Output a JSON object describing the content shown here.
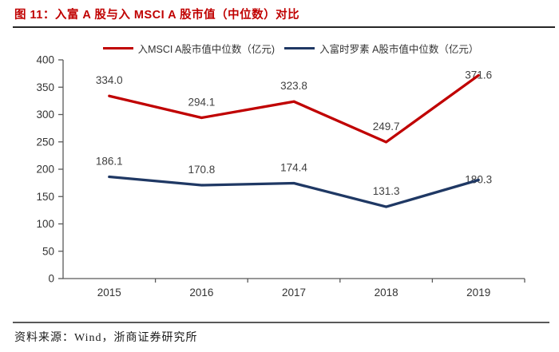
{
  "header": {
    "title": "图 11：入富 A 股与入 MSCI A 股市值（中位数）对比"
  },
  "footer": {
    "source": "资料来源：Wind，浙商证券研究所"
  },
  "colors": {
    "accent": "#C00000",
    "series1": "#C00000",
    "series2": "#1F3864",
    "axis": "#595959",
    "tick_text": "#333333",
    "data_label_text": "#404040"
  },
  "chart_data": {
    "type": "line",
    "title": "入富 A 股与入 MSCI A 股市值（中位数）对比",
    "categories": [
      "2015",
      "2016",
      "2017",
      "2018",
      "2019"
    ],
    "series": [
      {
        "name": "入MSCI A股市值中位数（亿元)",
        "color": "#C00000",
        "values": [
          334.0,
          294.1,
          323.8,
          249.7,
          371.6
        ]
      },
      {
        "name": "入富时罗素 A股市值中位数（亿元）",
        "color": "#1F3864",
        "values": [
          186.1,
          170.8,
          174.4,
          131.3,
          180.3
        ]
      }
    ],
    "xlabel": "",
    "ylabel": "",
    "ylim": [
      0,
      400
    ],
    "y_ticks": [
      0,
      50,
      100,
      150,
      200,
      250,
      300,
      350,
      400
    ],
    "grid": false,
    "legend_position": "top",
    "data_labels": true,
    "label_decimals": 1
  }
}
